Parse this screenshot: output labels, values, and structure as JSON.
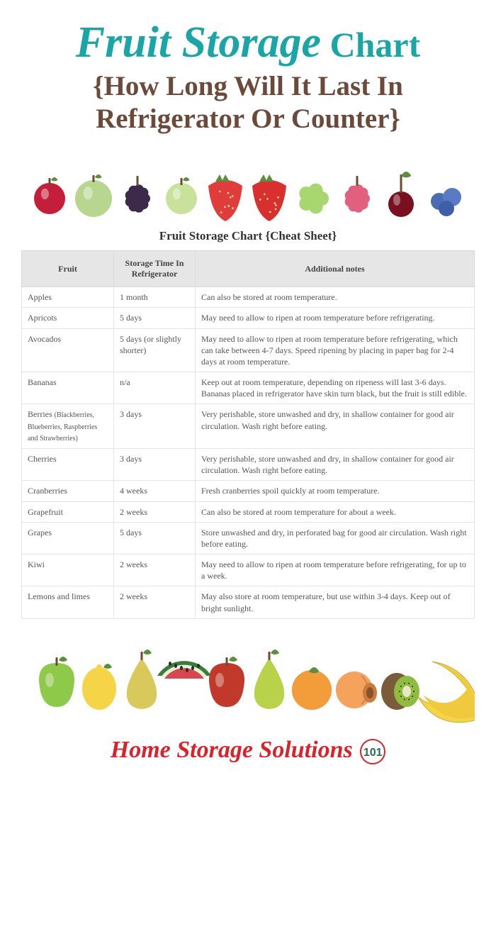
{
  "colors": {
    "teal": "#1aa6a6",
    "brown": "#6b4a3a",
    "red": "#d8232a",
    "orange": "#e8a33d",
    "badge_border": "#d8232a",
    "badge_text": "#2a6b4f",
    "header_bg": "#e6e6e6",
    "cell_border": "#e4e4e4",
    "text": "#555555"
  },
  "title": {
    "script": "Fruit Storage",
    "bold": "Chart"
  },
  "subtitle": "{How Long Will It Last In Refrigerator Or Counter}",
  "sheet_title": "Fruit Storage Chart {Cheat Sheet}",
  "table": {
    "columns": [
      "Fruit",
      "Storage Time In Refrigerator",
      "Additional notes"
    ],
    "rows": [
      [
        "Apples",
        "1 month",
        "Can also be stored at room temperature."
      ],
      [
        "Apricots",
        "5 days",
        "May need to allow to ripen at room temperature before refrigerating."
      ],
      [
        "Avocados",
        "5 days (or slightly shorter)",
        "May need to allow to ripen at room temperature before refrigerating, which can take between 4-7 days. Speed ripening by placing in paper bag for 2-4 days at room temperature."
      ],
      [
        "Bananas",
        "n/a",
        "Keep out at room temperature, depending on ripeness will last 3-6 days. Bananas placed in refrigerator have skin turn black, but the fruit is still edible."
      ],
      [
        "Berries (Blackberries, Blueberries, Raspberries and Strawberries)",
        "3 days",
        "Very perishable, store unwashed and dry, in shallow container for good air circulation. Wash right before eating."
      ],
      [
        "Cherries",
        "3 days",
        "Very perishable, store unwashed and dry, in shallow container for good air circulation. Wash right before eating."
      ],
      [
        "Cranberries",
        "4 weeks",
        "Fresh cranberries spoil quickly at room temperature."
      ],
      [
        "Grapefruit",
        "2 weeks",
        "Can also be stored at room temperature for about a week."
      ],
      [
        "Grapes",
        "5 days",
        "Store unwashed and dry, in perforated bag for good air circulation. Wash right before eating."
      ],
      [
        "Kiwi",
        "2 weeks",
        "May need to allow to ripen at room temperature before refrigerating, for up to a week."
      ],
      [
        "Lemons and limes",
        "2 weeks",
        "May also store at room temperature, but use within 3-4 days. Keep out of bright sunlight."
      ]
    ]
  },
  "footer": {
    "text": "Home Storage Solutions",
    "badge": "101"
  },
  "top_fruits": [
    {
      "name": "cranberry",
      "color": "#c41e3a"
    },
    {
      "name": "gooseberry",
      "color": "#b8d68f"
    },
    {
      "name": "blackberry",
      "color": "#3b2a4a"
    },
    {
      "name": "gooseberry",
      "color": "#c9e29b"
    },
    {
      "name": "strawberry",
      "color": "#e03c3c"
    },
    {
      "name": "strawberry",
      "color": "#d82f2f"
    },
    {
      "name": "grape",
      "color": "#a8d66f"
    },
    {
      "name": "raspberry",
      "color": "#e0607e"
    },
    {
      "name": "cherry",
      "color": "#7a0f1f"
    },
    {
      "name": "blueberry",
      "color": "#4a6bb5"
    }
  ],
  "bottom_fruits": [
    {
      "name": "green-apple",
      "color": "#8fc94a"
    },
    {
      "name": "lemon",
      "color": "#f5d547"
    },
    {
      "name": "pear",
      "color": "#d9c95a"
    },
    {
      "name": "watermelon",
      "color": "#d8474e"
    },
    {
      "name": "red-apple",
      "color": "#c0392b"
    },
    {
      "name": "green-pear",
      "color": "#b8d24a"
    },
    {
      "name": "orange",
      "color": "#f39c3a"
    },
    {
      "name": "peach",
      "color": "#f5a25d"
    },
    {
      "name": "kiwi",
      "color": "#8fbc3f"
    },
    {
      "name": "banana",
      "color": "#f5d547"
    }
  ]
}
